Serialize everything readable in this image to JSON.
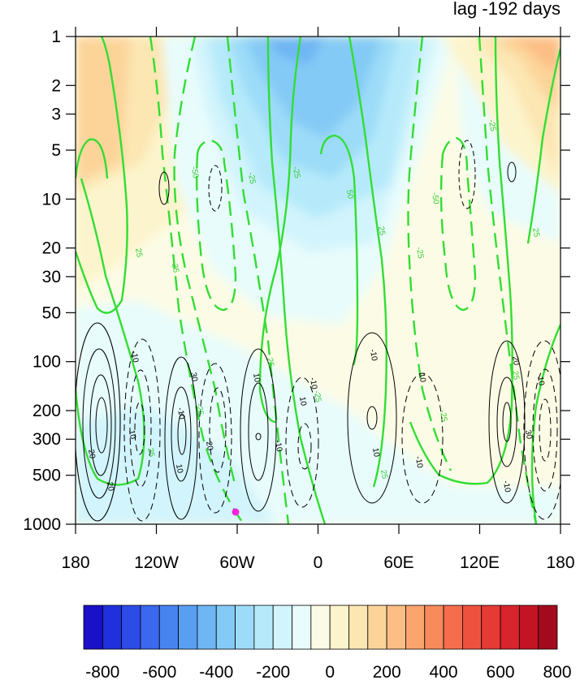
{
  "title_right": "lag -192 days",
  "chart_data": {
    "type": "contour",
    "x_ticks": [
      "180",
      "120W",
      "60W",
      "0",
      "60E",
      "120E",
      "180"
    ],
    "y_ticks": [
      "1",
      "2",
      "3",
      "5",
      "10",
      "20",
      "30",
      "50",
      "100",
      "200",
      "300",
      "500",
      "1000"
    ],
    "y_scale": "log",
    "y_reversed": true,
    "colorbar": {
      "labels": [
        "-800",
        "-600",
        "-400",
        "-200",
        "0",
        "200",
        "400",
        "600",
        "800"
      ],
      "colors": [
        "#1a10c8",
        "#2030dc",
        "#2c4ce8",
        "#3a68ee",
        "#4884f0",
        "#5a9ef2",
        "#6eb6f4",
        "#84caf6",
        "#9cdcf8",
        "#b6eafa",
        "#d2f4fc",
        "#e8fcfc",
        "#fcfce6",
        "#fcf4cc",
        "#fce6b2",
        "#fcd49a",
        "#fcbe84",
        "#fca46e",
        "#f88a5c",
        "#f46e4c",
        "#ee523e",
        "#e63a34",
        "#d8242c",
        "#c41424",
        "#a40a1e"
      ]
    },
    "black_contour_labels": [
      "-10",
      "10",
      "20",
      "30",
      "-10",
      "10",
      "20",
      "10",
      "-10",
      "10",
      "-10",
      "10",
      "-10",
      "10",
      "20",
      "30",
      "-10",
      "10",
      "20",
      "-10"
    ],
    "green_contour_labels": [
      "25",
      "-50",
      "-25",
      "25",
      "-25",
      "25",
      "-25",
      "50",
      "25",
      "-25",
      "-50",
      "-25",
      "25",
      "-25",
      "25",
      "25",
      "-25",
      "25"
    ]
  }
}
